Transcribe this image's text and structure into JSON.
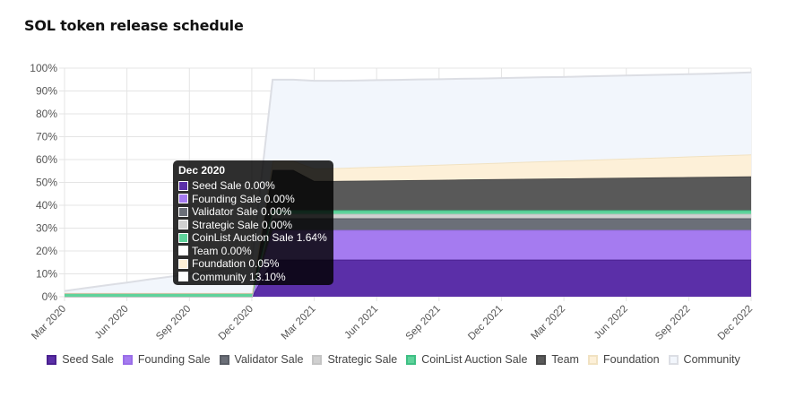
{
  "chart_data": {
    "type": "area",
    "stacked": true,
    "title": "SOL token release schedule",
    "x": [
      "Mar 2020",
      "Apr 2020",
      "May 2020",
      "Jun 2020",
      "Jul 2020",
      "Aug 2020",
      "Sep 2020",
      "Oct 2020",
      "Nov 2020",
      "Dec 2020",
      "Jan 2021",
      "Feb 2021",
      "Mar 2021",
      "Apr 2021",
      "May 2021",
      "Jun 2021",
      "Jul 2021",
      "Aug 2021",
      "Sep 2021",
      "Oct 2021",
      "Nov 2021",
      "Dec 2021",
      "Jan 2022",
      "Feb 2022",
      "Mar 2022",
      "Apr 2022",
      "May 2022",
      "Jun 2022",
      "Jul 2022",
      "Aug 2022",
      "Sep 2022",
      "Oct 2022",
      "Nov 2022",
      "Dec 2022"
    ],
    "x_ticks": [
      "Mar 2020",
      "Jun 2020",
      "Sep 2020",
      "Dec 2020",
      "Mar 2021",
      "Jun 2021",
      "Sep 2021",
      "Dec 2021",
      "Mar 2022",
      "Jun 2022",
      "Sep 2022",
      "Dec 2022"
    ],
    "y_ticks": [
      "0%",
      "10%",
      "20%",
      "30%",
      "40%",
      "50%",
      "60%",
      "70%",
      "80%",
      "90%",
      "100%"
    ],
    "ylim": [
      0,
      100
    ],
    "y_unit": "%",
    "grid": true,
    "legend_position": "bottom",
    "series": [
      {
        "name": "Seed Sale",
        "color": "#5b2fa8",
        "border": "#4a2190",
        "values": [
          0,
          0,
          0,
          0,
          0,
          0,
          0,
          0,
          0,
          0,
          16.23,
          16.23,
          16.23,
          16.23,
          16.23,
          16.23,
          16.23,
          16.23,
          16.23,
          16.23,
          16.23,
          16.23,
          16.23,
          16.23,
          16.23,
          16.23,
          16.23,
          16.23,
          16.23,
          16.23,
          16.23,
          16.23,
          16.23,
          16.23
        ]
      },
      {
        "name": "Founding Sale",
        "color": "#a57bf0",
        "border": "#9a6ee8",
        "values": [
          0,
          0,
          0,
          0,
          0,
          0,
          0,
          0,
          0,
          0,
          12.92,
          12.92,
          12.92,
          12.92,
          12.92,
          12.92,
          12.92,
          12.92,
          12.92,
          12.92,
          12.92,
          12.92,
          12.92,
          12.92,
          12.92,
          12.92,
          12.92,
          12.92,
          12.92,
          12.92,
          12.92,
          12.92,
          12.92,
          12.92
        ]
      },
      {
        "name": "Validator Sale",
        "color": "#6b6f78",
        "border": "#5a5e66",
        "values": [
          0,
          0,
          0,
          0,
          0,
          0,
          0,
          0,
          0,
          0,
          5.18,
          5.18,
          5.18,
          5.18,
          5.18,
          5.18,
          5.18,
          5.18,
          5.18,
          5.18,
          5.18,
          5.18,
          5.18,
          5.18,
          5.18,
          5.18,
          5.18,
          5.18,
          5.18,
          5.18,
          5.18,
          5.18,
          5.18,
          5.18
        ]
      },
      {
        "name": "Strategic Sale",
        "color": "#d0d0d0",
        "border": "#c4c4c4",
        "values": [
          0,
          0,
          0,
          0,
          0,
          0,
          0,
          0,
          0,
          0,
          1.88,
          1.88,
          1.88,
          1.88,
          1.88,
          1.88,
          1.88,
          1.88,
          1.88,
          1.88,
          1.88,
          1.88,
          1.88,
          1.88,
          1.88,
          1.88,
          1.88,
          1.88,
          1.88,
          1.88,
          1.88,
          1.88,
          1.88,
          1.88
        ]
      },
      {
        "name": "CoinList Auction Sale",
        "color": "#5fd39b",
        "border": "#3fbf84",
        "values": [
          1.64,
          1.64,
          1.64,
          1.64,
          1.64,
          1.64,
          1.64,
          1.64,
          1.64,
          1.64,
          1.64,
          1.64,
          1.64,
          1.64,
          1.64,
          1.64,
          1.64,
          1.64,
          1.64,
          1.64,
          1.64,
          1.64,
          1.64,
          1.64,
          1.64,
          1.64,
          1.64,
          1.64,
          1.64,
          1.64,
          1.64,
          1.64,
          1.64,
          1.64
        ]
      },
      {
        "name": "Team",
        "color": "#595959",
        "border": "#4a4a4a",
        "values": [
          0,
          0,
          0,
          0,
          0,
          0,
          0,
          0,
          0,
          0,
          17.6,
          17.6,
          12.8,
          12.8,
          12.9,
          13.0,
          13.1,
          13.2,
          13.3,
          13.4,
          13.5,
          13.6,
          13.7,
          13.8,
          13.9,
          14.0,
          14.1,
          14.2,
          14.3,
          14.4,
          14.5,
          14.6,
          14.7,
          14.8
        ]
      },
      {
        "name": "Foundation",
        "color": "#fdf0d8",
        "border": "#f1e2c2",
        "values": [
          0.05,
          0.05,
          0.05,
          0.05,
          0.05,
          0.05,
          0.05,
          0.05,
          0.05,
          0.05,
          4.0,
          4.0,
          5.5,
          5.6,
          5.8,
          6.0,
          6.2,
          6.4,
          6.6,
          6.8,
          7.0,
          7.2,
          7.4,
          7.6,
          7.8,
          8.0,
          8.2,
          8.4,
          8.6,
          8.8,
          9.0,
          9.2,
          9.4,
          9.6
        ]
      },
      {
        "name": "Community",
        "color": "#f2f6fc",
        "border": "#dcdee4",
        "values": [
          0.8,
          2.1,
          3.3,
          4.5,
          5.8,
          7.0,
          8.3,
          9.5,
          11.0,
          13.1,
          35.5,
          35.5,
          38.3,
          38.2,
          38.0,
          37.9,
          37.7,
          37.6,
          37.4,
          37.3,
          37.1,
          37.0,
          36.9,
          36.8,
          36.6,
          36.5,
          36.4,
          36.3,
          36.2,
          36.1,
          36.0,
          35.9,
          35.9,
          35.9
        ]
      }
    ],
    "tooltip": {
      "title": "Dec 2020",
      "rows": [
        {
          "label": "Seed Sale 0.00%",
          "color": "#5b2fa8"
        },
        {
          "label": "Founding Sale 0.00%",
          "color": "#a57bf0"
        },
        {
          "label": "Validator Sale 0.00%",
          "color": "#6b6f78"
        },
        {
          "label": "Strategic Sale 0.00%",
          "color": "#d0d0d0"
        },
        {
          "label": "CoinList Auction Sale 1.64%",
          "color": "#5fd39b"
        },
        {
          "label": "Team 0.00%",
          "color": "#ffffff"
        },
        {
          "label": "Foundation 0.05%",
          "color": "#fdf0d8"
        },
        {
          "label": "Community 13.10%",
          "color": "#ffffff"
        }
      ]
    }
  }
}
